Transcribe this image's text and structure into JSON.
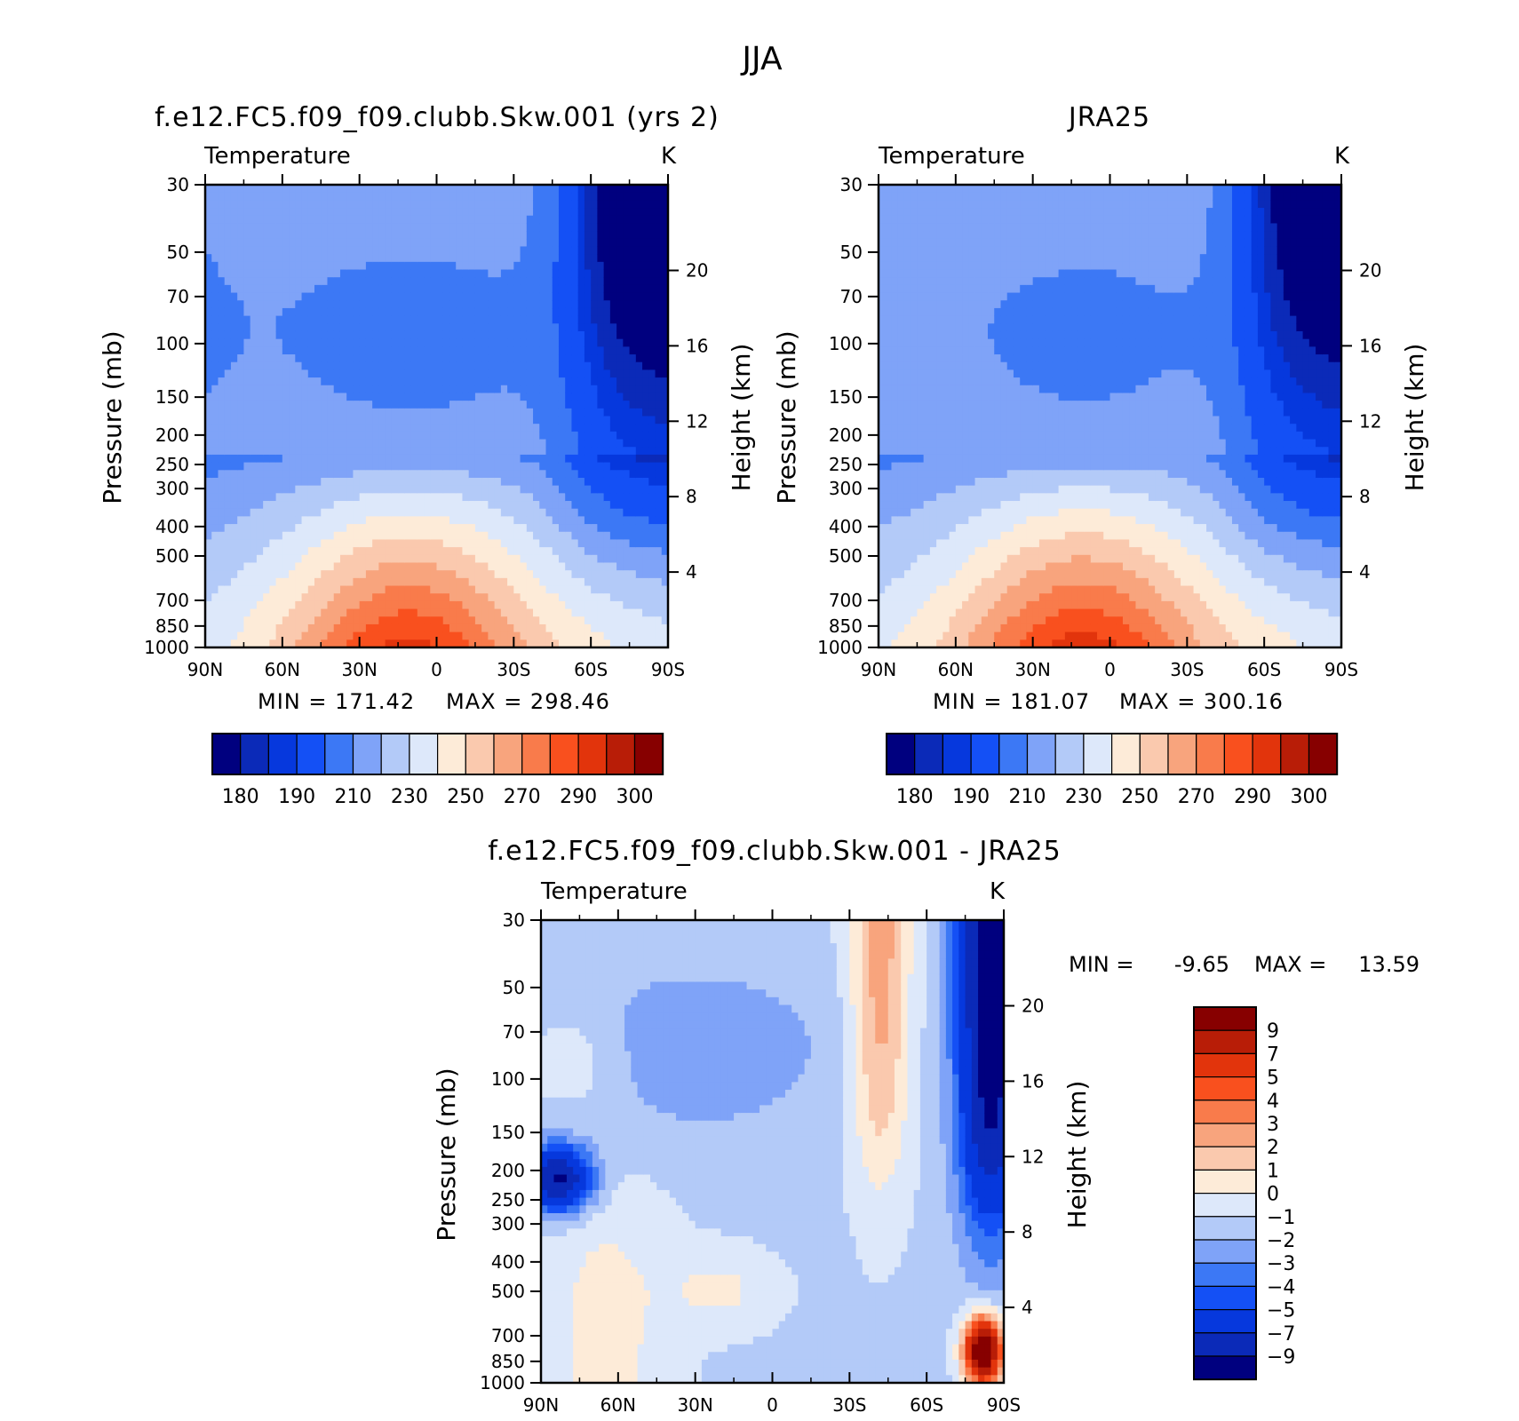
{
  "figure": {
    "season": "JJA"
  },
  "palettes": {
    "abs": [
      "#00007f",
      "#0b2ab8",
      "#0638dd",
      "#1450f5",
      "#3c78f5",
      "#7fa3f8",
      "#b3caf8",
      "#dde8fa",
      "#fdebd8",
      "#fac9ae",
      "#f8a47d",
      "#f97b4b",
      "#f9501e",
      "#e2340c",
      "#b81d07",
      "#870000"
    ],
    "diff": [
      "#00007f",
      "#0b2ab8",
      "#0638dd",
      "#1450f5",
      "#3c78f5",
      "#7fa3f8",
      "#b3caf8",
      "#dde8fa",
      "#fdebd8",
      "#fac9ae",
      "#f8a47d",
      "#f97b4b",
      "#f9501e",
      "#e2340c",
      "#b81d07",
      "#870000"
    ]
  },
  "axes": {
    "lat_ticks": [
      {
        "value": 90,
        "label": "90N"
      },
      {
        "value": 60,
        "label": "60N"
      },
      {
        "value": 30,
        "label": "30N"
      },
      {
        "value": 0,
        "label": "0"
      },
      {
        "value": -30,
        "label": "30S"
      },
      {
        "value": -60,
        "label": "60S"
      },
      {
        "value": -90,
        "label": "90S"
      }
    ],
    "pressure_ticks": [
      30,
      50,
      70,
      100,
      150,
      200,
      250,
      300,
      400,
      500,
      700,
      850,
      1000
    ],
    "height_ticks": [
      4,
      8,
      12,
      16,
      20
    ],
    "ylabel": "Pressure (mb)",
    "ylabel_right": "Height (km)",
    "variable": "Temperature",
    "units": "K"
  },
  "chart_data": [
    {
      "type": "heatmap",
      "panel": "model",
      "title": "f.e12.FC5.f09_f09.clubb.Skw.001 (yrs 2)",
      "variable": "Temperature",
      "units": "K",
      "x_range": [
        90,
        -90
      ],
      "y_range_mb": [
        1000,
        30
      ],
      "min_label": "MIN = 171.42",
      "max_label": "MAX = 298.46",
      "min": 171.42,
      "max": 298.46,
      "colorbar": {
        "orientation": "horizontal",
        "levels": [
          180,
          185,
          190,
          200,
          210,
          220,
          230,
          240,
          250,
          260,
          270,
          280,
          290,
          295,
          300
        ],
        "labels": [
          "180",
          "190",
          "210",
          "230",
          "250",
          "270",
          "290",
          "300"
        ]
      }
    },
    {
      "type": "heatmap",
      "panel": "obs",
      "title": "JRA25",
      "variable": "Temperature",
      "units": "K",
      "x_range": [
        90,
        -90
      ],
      "y_range_mb": [
        1000,
        30
      ],
      "min_label": "MIN = 181.07",
      "max_label": "MAX = 300.16",
      "min": 181.07,
      "max": 300.16,
      "colorbar": {
        "orientation": "horizontal",
        "levels": [
          180,
          185,
          190,
          200,
          210,
          220,
          230,
          240,
          250,
          260,
          270,
          280,
          290,
          295,
          300
        ],
        "labels": [
          "180",
          "190",
          "210",
          "230",
          "250",
          "270",
          "290",
          "300"
        ]
      }
    },
    {
      "type": "heatmap",
      "panel": "diff",
      "title": "f.e12.FC5.f09_f09.clubb.Skw.001 - JRA25",
      "variable": "Temperature",
      "units": "K",
      "x_range": [
        90,
        -90
      ],
      "y_range_mb": [
        1000,
        30
      ],
      "min_label": "MIN =",
      "min_value": "-9.65",
      "max_label": "MAX =",
      "max_value": "13.59",
      "min": -9.65,
      "max": 13.59,
      "colorbar": {
        "orientation": "vertical",
        "levels": [
          -9,
          -7,
          -5,
          -4,
          -3,
          -2,
          -1,
          0,
          1,
          2,
          3,
          4,
          5,
          7,
          9
        ],
        "labels": [
          "9",
          "7",
          "5",
          "4",
          "3",
          "2",
          "1",
          "0",
          "−1",
          "−2",
          "−3",
          "−4",
          "−5",
          "−7",
          "−9"
        ]
      }
    }
  ]
}
